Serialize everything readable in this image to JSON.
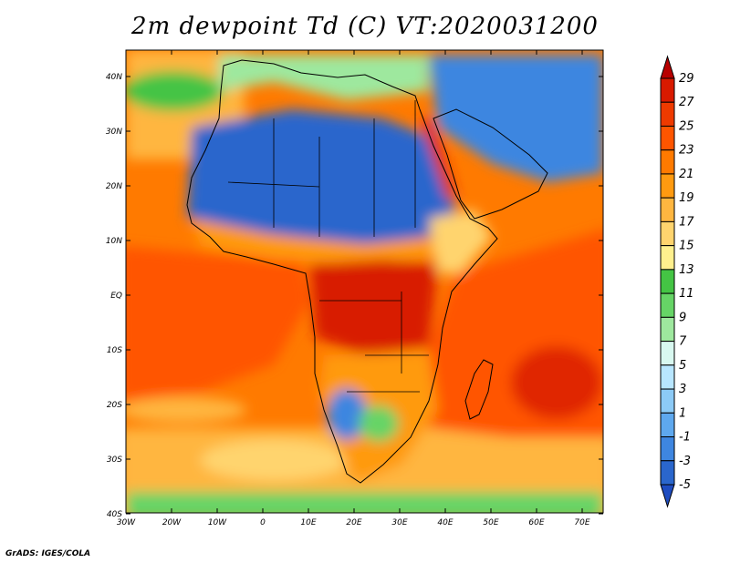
{
  "title": "2m dewpoint Td (C) VT:2020031200",
  "credit": "GrADS: IGES/COLA",
  "map": {
    "lon_labels": [
      "30W",
      "20W",
      "10W",
      "0",
      "10E",
      "20E",
      "30E",
      "40E",
      "50E",
      "60E",
      "70E"
    ],
    "lat_labels": [
      "40N",
      "30N",
      "20N",
      "10N",
      "EQ",
      "10S",
      "20S",
      "30S",
      "40S"
    ]
  },
  "colorbar": {
    "labels": [
      "29",
      "27",
      "25",
      "23",
      "21",
      "19",
      "17",
      "15",
      "13",
      "11",
      "9",
      "7",
      "5",
      "3",
      "1",
      "-1",
      "-3",
      "-5"
    ],
    "colors": [
      "#b80000",
      "#d81a00",
      "#ee3a00",
      "#ff5500",
      "#ff7a00",
      "#ff9a10",
      "#ffb640",
      "#ffd46e",
      "#fff08e",
      "#44c444",
      "#66d466",
      "#9ee89e",
      "#d8f8f0",
      "#b8e6ff",
      "#8ccaf6",
      "#5ea8ee",
      "#3e86e0",
      "#2a66cc",
      "#1e4cc0"
    ]
  }
}
